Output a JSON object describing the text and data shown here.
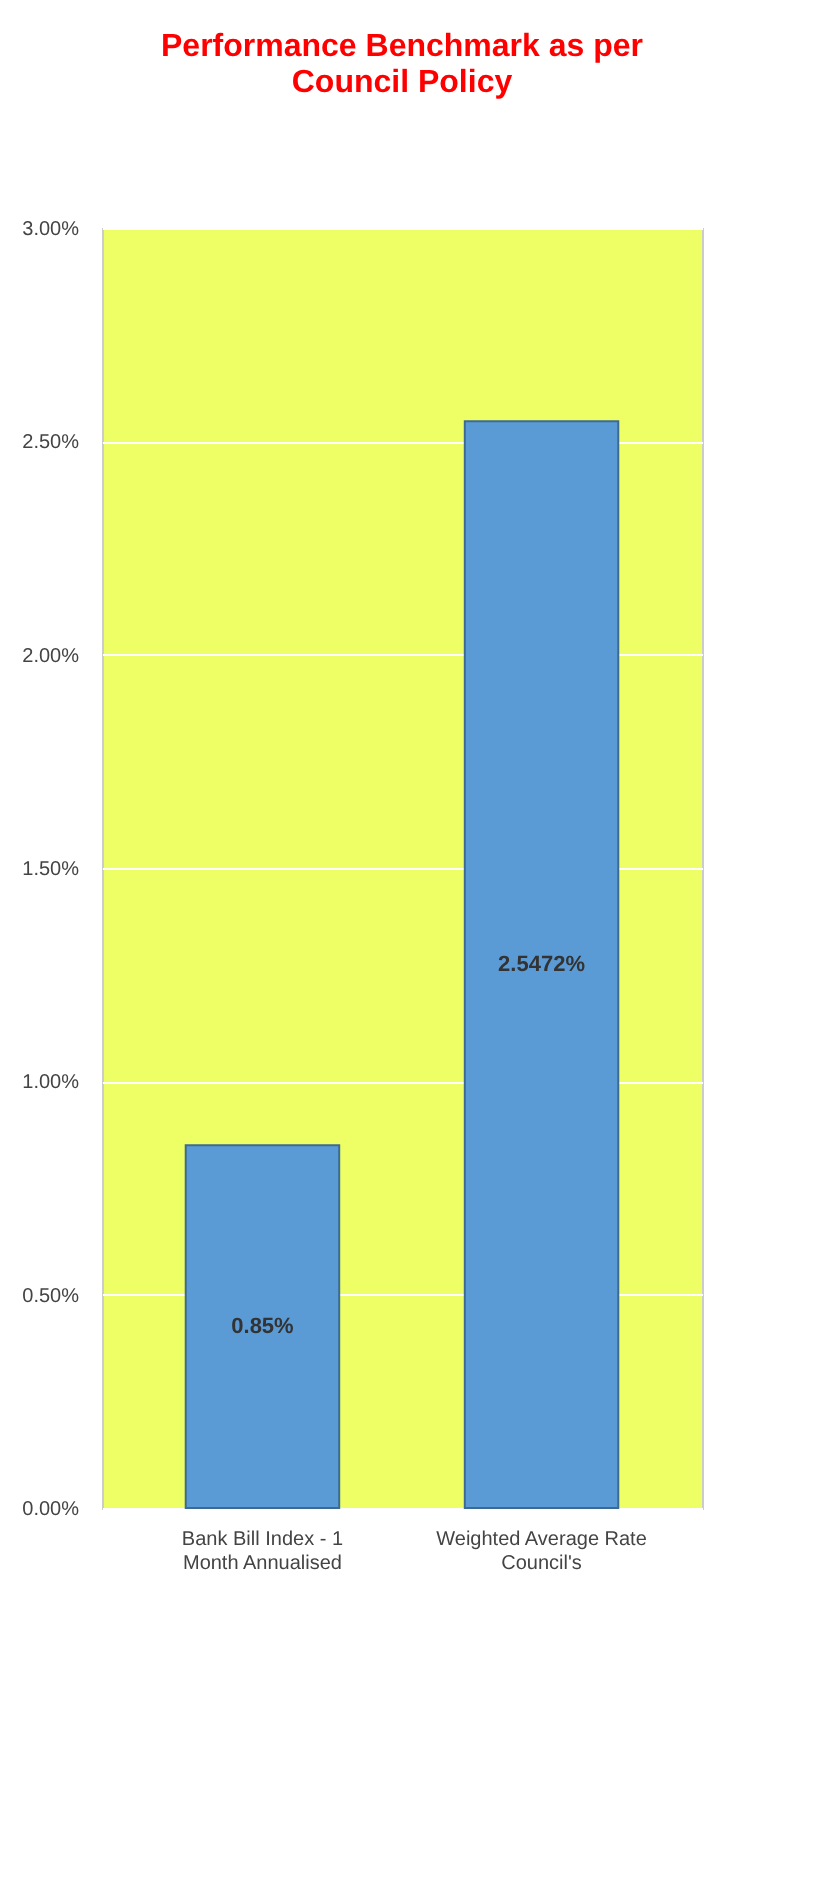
{
  "chart_data": {
    "type": "bar",
    "title": "Performance Benchmark as per Council Policy",
    "categories": [
      "Bank Bill Index - 1 Month Annualised",
      "Weighted Average Rate"
    ],
    "values": [
      0.85,
      2.5472
    ],
    "value_labels": [
      "0.85%",
      "2.5472%"
    ],
    "color": "#5b9bd5",
    "ylim": [
      0,
      3
    ],
    "yticks": [
      {
        "value": 0,
        "label": "0.00%"
      },
      {
        "value": 0.5,
        "label": "0.50%"
      },
      {
        "value": 1,
        "label": "1.00%"
      },
      {
        "value": 1.5,
        "label": "1.50%"
      },
      {
        "value": 2,
        "label": "2.00%"
      },
      {
        "value": 2.5,
        "label": "2.50%"
      },
      {
        "value": 3,
        "label": "3.00%"
      }
    ],
    "grid": "y",
    "annotations": [
      "Council's"
    ]
  }
}
